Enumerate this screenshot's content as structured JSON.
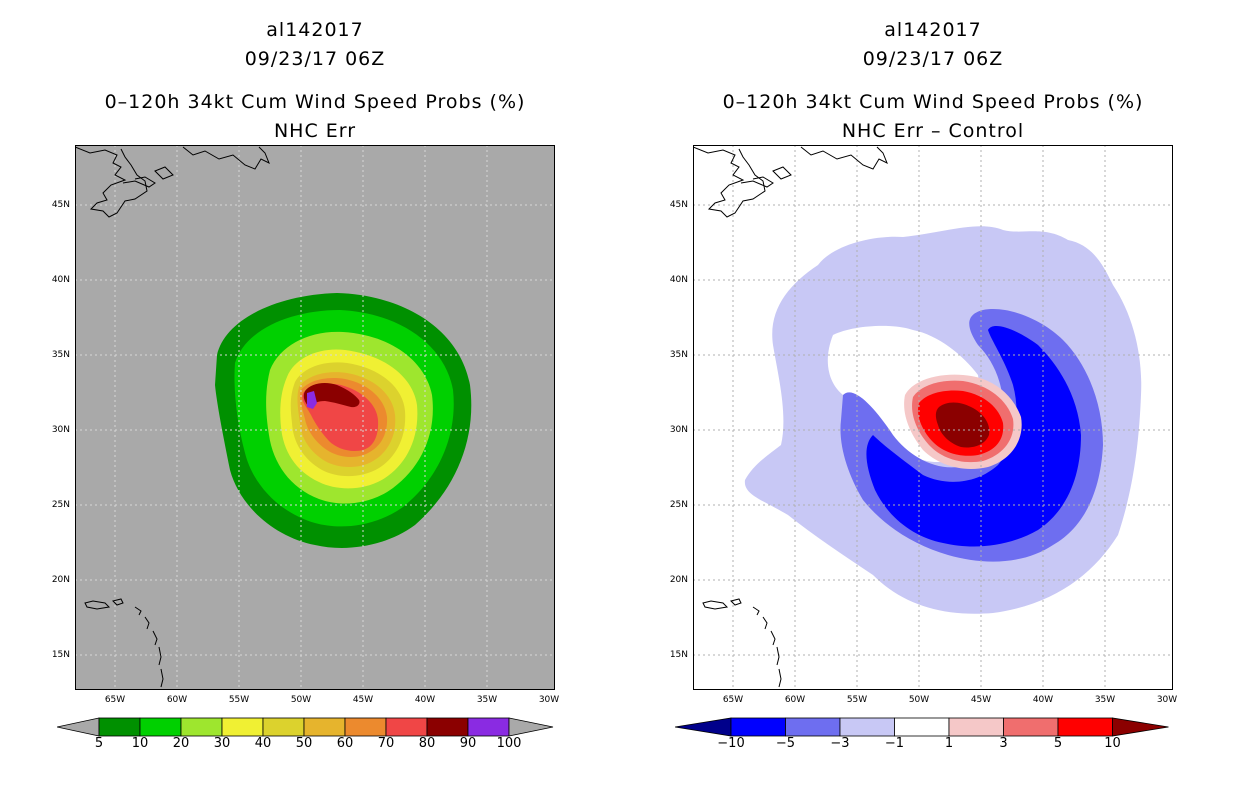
{
  "left": {
    "storm_id": "al142017",
    "datetime": "09/23/17 06Z",
    "title": "0–120h 34kt Cum Wind Speed Probs (%)",
    "subtitle": "NHC Err",
    "colorbar_labels": [
      "5",
      "10",
      "20",
      "30",
      "40",
      "50",
      "60",
      "70",
      "80",
      "90",
      "100"
    ],
    "colors": [
      "#009000",
      "#00d000",
      "#9ee62e",
      "#f0f033",
      "#dcd22d",
      "#e6b42d",
      "#ec8a2e",
      "#f04646",
      "#8b0000",
      "#8a2be2"
    ]
  },
  "right": {
    "storm_id": "al142017",
    "datetime": "09/23/17 06Z",
    "title": "0–120h 34kt Cum Wind Speed Probs (%)",
    "subtitle": "NHC Err – Control",
    "colorbar_labels": [
      "−10",
      "−5",
      "−3",
      "−1",
      "1",
      "3",
      "5",
      "10"
    ],
    "colors": [
      "#00008b",
      "#0000ff",
      "#6e6ef0",
      "#c8c8f5",
      "#ffffff",
      "#f5c8c8",
      "#f06e6e",
      "#ff0000",
      "#8b0000"
    ]
  },
  "lat_labels": [
    "45N",
    "40N",
    "35N",
    "30N",
    "25N",
    "20N",
    "15N"
  ],
  "lon_labels": [
    "65W",
    "60W",
    "55W",
    "50W",
    "45W",
    "40W",
    "35W",
    "30W"
  ]
}
